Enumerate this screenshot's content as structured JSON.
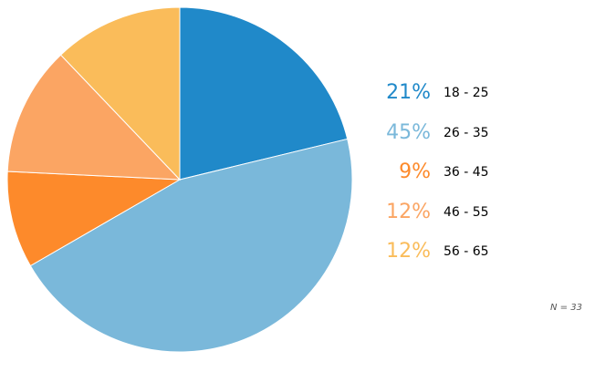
{
  "chart_data": {
    "type": "pie",
    "categories": [
      "18 - 25",
      "26 - 35",
      "36 - 45",
      "46 - 55",
      "56 - 65"
    ],
    "values": [
      21,
      45,
      9,
      12,
      12
    ],
    "value_labels": [
      "21%",
      "45%",
      "9%",
      "12%",
      "12%"
    ],
    "colors": [
      "#2089c9",
      "#7ab8da",
      "#fd8a2b",
      "#fba563",
      "#fabc5a"
    ],
    "legend_placement": "right",
    "note": "N = 33"
  }
}
